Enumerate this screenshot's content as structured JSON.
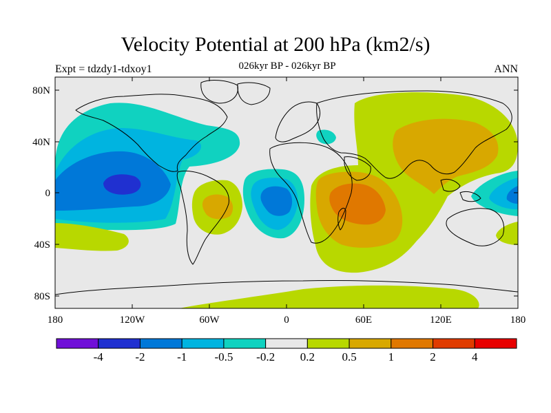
{
  "header": {
    "title": "Velocity Potential at 200 hPa (km2/s)",
    "experiment": "Expt = tdzdy1-tdxoy1",
    "period": "026kyr BP - 026kyr BP",
    "season": "ANN"
  },
  "axes": {
    "x_ticks": [
      "180",
      "120W",
      "60W",
      "0",
      "60E",
      "120E",
      "180"
    ],
    "y_ticks": [
      "80N",
      "40N",
      "0",
      "40S",
      "80S"
    ]
  },
  "colorbar": {
    "colors": [
      "#7010d8",
      "#2030d0",
      "#0078d8",
      "#00b4e0",
      "#10d2c0",
      "#e8e8e8",
      "#b8d800",
      "#d8a800",
      "#e07800",
      "#e03c00",
      "#e80000"
    ],
    "labels": [
      "-4",
      "-2",
      "-1",
      "-0.5",
      "-0.2",
      "0.2",
      "0.5",
      "1",
      "2",
      "4"
    ]
  },
  "map_colors": {
    "background": "#e8e8e8",
    "coast": "#000000"
  }
}
